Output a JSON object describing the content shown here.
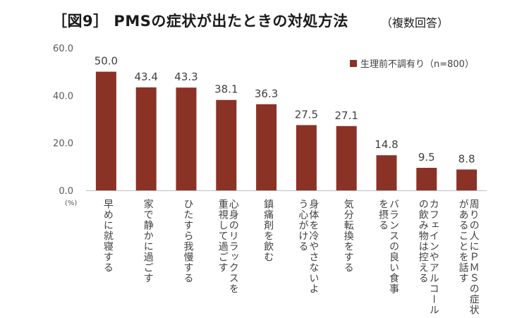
{
  "title": "［図9］ PMSの症状が出たときの対処方法",
  "subtitle": "（複数回答）",
  "colors": {
    "bar": "#8b3226",
    "axis": "#bfbfbf",
    "text": "#404040"
  },
  "chart_data": {
    "type": "bar",
    "unit_label": "(%)",
    "ylim": [
      0,
      60
    ],
    "yticks": [
      "0.0",
      "20.0",
      "40.0",
      "60.0"
    ],
    "legend": "生理前不調有り（n=800）",
    "legend_position": "top-right",
    "grid": false,
    "categories": [
      "早めに就寝する",
      "家で静かに過ごす",
      "ひたすら我慢する",
      "心身のリラックスを重視して過ごす",
      "鎮痛剤を飲む",
      "身体を冷やさないよう心がける",
      "気分転換をする",
      "バランスの良い食事を摂る",
      "カフェインやアルコールの飲み物は控える",
      "周りの人にPMSの症状があることを話す"
    ],
    "category_lines": [
      [
        "早めに就寝する"
      ],
      [
        "家で静かに過ごす"
      ],
      [
        "ひたすら我慢する"
      ],
      [
        "心身のリラックスを",
        "重視して過ごす"
      ],
      [
        "鎮痛剤を飲む"
      ],
      [
        "身体を冷やさないよ",
        "う心がける"
      ],
      [
        "気分転換をする"
      ],
      [
        "バランスの良い食事",
        "を摂る"
      ],
      [
        "カフェインやアルコール",
        "の飲み物は控える"
      ],
      [
        "周りの人にＰＭＳの症状",
        "があることを話す"
      ]
    ],
    "series": [
      {
        "name": "生理前不調有り（n=800）",
        "values": [
          50.0,
          43.4,
          43.3,
          38.1,
          36.3,
          27.5,
          27.1,
          14.8,
          9.5,
          8.8
        ]
      }
    ]
  }
}
